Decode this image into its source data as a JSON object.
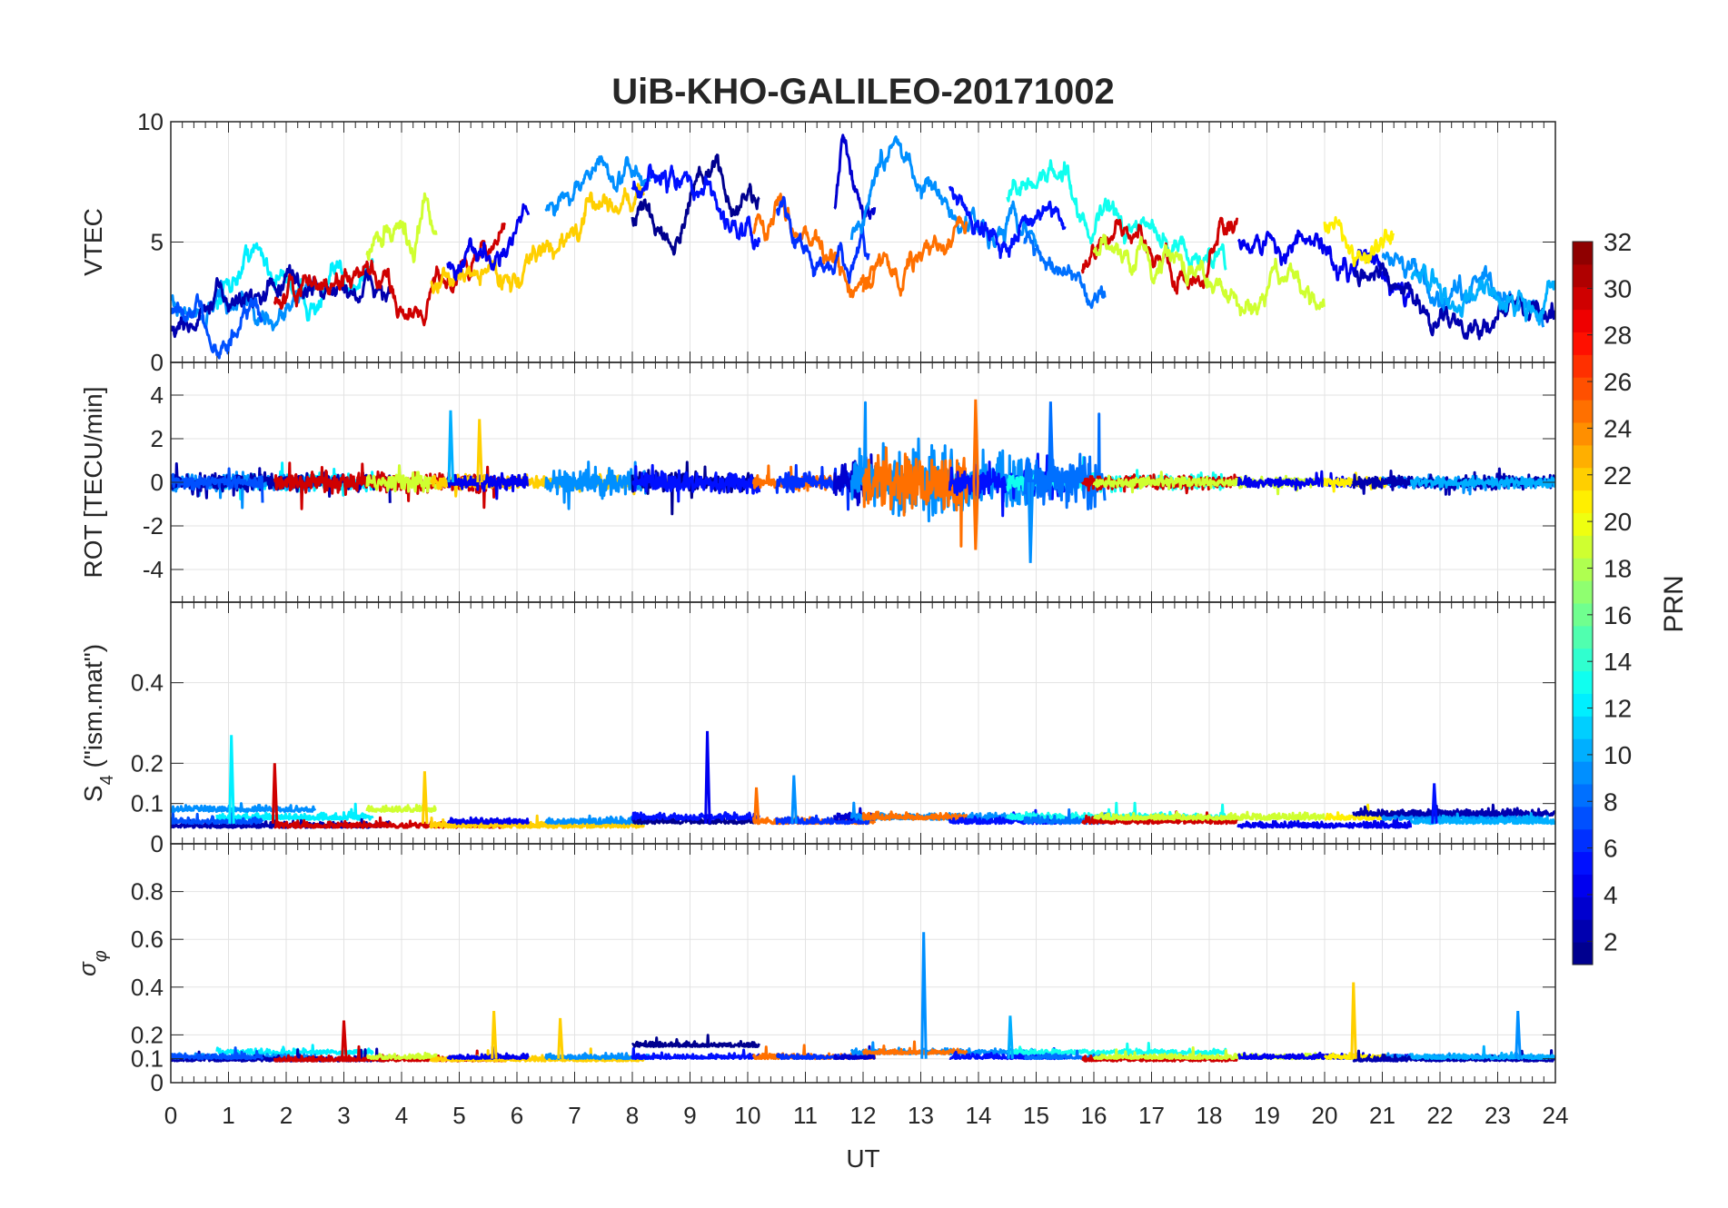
{
  "chart_data": {
    "type": "line",
    "title": "UiB-KHO-GALILEO-20171002",
    "xlabel": "UT",
    "xlim": [
      0,
      24
    ],
    "xticks": [
      "0",
      "1",
      "2",
      "3",
      "4",
      "5",
      "6",
      "7",
      "8",
      "9",
      "10",
      "11",
      "12",
      "13",
      "14",
      "15",
      "16",
      "17",
      "18",
      "19",
      "20",
      "21",
      "22",
      "23",
      "24"
    ],
    "colorbar": {
      "label": "PRN",
      "range": [
        1,
        32
      ],
      "ticks": [
        "2",
        "4",
        "6",
        "8",
        "10",
        "12",
        "14",
        "16",
        "18",
        "20",
        "22",
        "24",
        "26",
        "28",
        "30",
        "32"
      ],
      "colormap": "jet"
    },
    "panels": [
      {
        "id": "vtec",
        "ylabel": "VTEC",
        "ylim": [
          0,
          10
        ],
        "yticks": [
          "0",
          "5",
          "10"
        ],
        "ytick_values": [
          0,
          5,
          10
        ]
      },
      {
        "id": "rot",
        "ylabel": "ROT [TECU/min]",
        "ylim": [
          -5.5,
          5.5
        ],
        "yticks": [
          "-4",
          "-2",
          "0",
          "2",
          "4"
        ],
        "ytick_values": [
          -4,
          -2,
          0,
          2,
          4
        ]
      },
      {
        "id": "s4",
        "ylabel": "S",
        "ylabel_sub": "4",
        "ylabel_rest": " (\"ism.mat\")",
        "ylim": [
          0,
          0.6
        ],
        "yticks": [
          "0",
          "0.1",
          "0.2",
          "0.4"
        ],
        "ytick_values": [
          0,
          0.1,
          0.2,
          0.4
        ]
      },
      {
        "id": "sigma",
        "ylabel": "σ",
        "ylabel_sub": "φ",
        "ylim": [
          0,
          1
        ],
        "yticks": [
          "0",
          "0.1",
          "0.2",
          "0.4",
          "0.6",
          "0.8"
        ],
        "ytick_values": [
          0,
          0.1,
          0.2,
          0.4,
          0.6,
          0.8
        ]
      }
    ],
    "series": [
      {
        "prn": 12,
        "t": [
          0.8,
          1.4,
          2.0,
          2.5,
          3.0,
          3.5
        ],
        "vtec": [
          2.5,
          4.8,
          3.5,
          2.5,
          3.2,
          4.0
        ],
        "rot_amp": 0.5,
        "s4": 0.06,
        "sigma": 0.12
      },
      {
        "prn": 9,
        "t": [
          0,
          0.5,
          1.0,
          1.5,
          2.0,
          2.5
        ],
        "vtec": [
          2.6,
          2.3,
          2.0,
          1.5,
          2.5,
          3.0
        ],
        "rot_amp": 0.5,
        "s4": 0.08,
        "sigma": 0.1
      },
      {
        "prn": 2,
        "t": [
          0,
          0.6,
          1.2,
          1.8,
          2.4,
          3.0,
          3.8
        ],
        "vtec": [
          1.5,
          2.0,
          2.5,
          3.5,
          3.0,
          3.0,
          3.0
        ],
        "rot_amp": 0.5,
        "s4": 0.04,
        "sigma": 0.09
      },
      {
        "prn": 7,
        "t": [
          0,
          0.6,
          1.0,
          1.6
        ],
        "vtec": [
          2.0,
          1.2,
          0.8,
          1.8
        ],
        "rot_amp": 0.4,
        "s4": 0.05,
        "sigma": 0.1
      },
      {
        "prn": 30,
        "t": [
          1.8,
          2.5,
          3.2,
          3.8,
          4.2,
          4.6,
          5.0,
          5.4,
          5.8
        ],
        "vtec": [
          2.5,
          3.0,
          3.2,
          2.8,
          2.2,
          3.5,
          4.0,
          4.2,
          5.5
        ],
        "rot_amp": 0.6,
        "s4": 0.04,
        "sigma": 0.09
      },
      {
        "prn": 19,
        "t": [
          3.4,
          3.7,
          4.0,
          4.2,
          4.4,
          4.6
        ],
        "vtec": [
          4.5,
          5.5,
          6.0,
          4.5,
          6.5,
          5.5
        ],
        "rot_amp": 0.6,
        "s4": 0.08,
        "sigma": 0.1
      },
      {
        "prn": 22,
        "t": [
          4.5,
          5.0,
          5.5,
          6.0,
          6.5,
          7.0,
          7.5,
          7.9,
          8.2
        ],
        "vtec": [
          3.5,
          3.2,
          4.0,
          3.5,
          4.5,
          5.5,
          6.5,
          7.0,
          7.2
        ],
        "rot_amp": 0.4,
        "s4": 0.04,
        "sigma": 0.09
      },
      {
        "prn": 4,
        "t": [
          4.8,
          5.2,
          5.7,
          6.2
        ],
        "vtec": [
          4.0,
          4.5,
          5.0,
          6.0
        ],
        "rot_amp": 0.5,
        "s4": 0.05,
        "sigma": 0.1
      },
      {
        "prn": 9,
        "t": [
          6.5,
          7.0,
          7.5,
          7.8,
          8.3
        ],
        "vtec": [
          6.5,
          7.5,
          8.0,
          7.5,
          8.0
        ],
        "rot_amp": 0.8,
        "s4": 0.05,
        "sigma": 0.1
      },
      {
        "prn": 1,
        "t": [
          8.0,
          8.5,
          9.0,
          9.4,
          9.8,
          10.2
        ],
        "vtec": [
          6.0,
          5.5,
          6.5,
          8.5,
          6.5,
          6.7
        ],
        "rot_amp": 0.6,
        "s4": 0.05,
        "sigma": 0.15
      },
      {
        "prn": 5,
        "t": [
          8.0,
          8.6,
          9.2,
          9.6,
          10.0,
          10.2
        ],
        "vtec": [
          7.0,
          7.2,
          7.0,
          6.0,
          5.5,
          5.2
        ],
        "rot_amp": 0.6,
        "s4": 0.06,
        "sigma": 0.1
      },
      {
        "prn": 25,
        "t": [
          10.1,
          10.5,
          11.0,
          11.4,
          11.8,
          12.2
        ],
        "vtec": [
          5.5,
          6.5,
          6.0,
          4.5,
          2.5,
          3.5
        ],
        "rot_amp": 0.4,
        "s4": 0.05,
        "sigma": 0.1
      },
      {
        "prn": 6,
        "t": [
          10.5,
          11.0,
          11.3,
          11.6,
          12.1
        ],
        "vtec": [
          6.5,
          5.0,
          3.5,
          4.0,
          3.8
        ],
        "rot_amp": 0.6,
        "s4": 0.05,
        "sigma": 0.1
      },
      {
        "prn": 3,
        "t": [
          11.5,
          11.7,
          12.0,
          12.2
        ],
        "vtec": [
          6.5,
          8.5,
          6.0,
          6.5
        ],
        "rot_amp": 1.5,
        "s4": 0.06,
        "sigma": 0.1
      },
      {
        "prn": 9,
        "t": [
          11.8,
          12.5,
          13.0,
          13.5,
          14.0,
          15.0
        ],
        "vtec": [
          5.0,
          9.0,
          8.0,
          6.0,
          5.5,
          6.0
        ],
        "rot_amp": 1.8,
        "s4": 0.06,
        "sigma": 0.12
      },
      {
        "prn": 25,
        "t": [
          12.0,
          12.5,
          13.0,
          13.4,
          13.8
        ],
        "vtec": [
          3.0,
          4.0,
          5.0,
          4.5,
          6.0
        ],
        "rot_amp": 1.6,
        "s4": 0.06,
        "sigma": 0.12
      },
      {
        "prn": 5,
        "t": [
          13.5,
          14.0,
          14.5,
          15.0,
          15.5
        ],
        "vtec": [
          7.0,
          6.0,
          5.5,
          6.0,
          5.0
        ],
        "rot_amp": 0.9,
        "s4": 0.05,
        "sigma": 0.1
      },
      {
        "prn": 13,
        "t": [
          14.5,
          15.0,
          15.5,
          15.9,
          16.5,
          17.2,
          18.0,
          18.3
        ],
        "vtec": [
          7.0,
          7.5,
          8.0,
          6.0,
          5.5,
          5.0,
          4.5,
          4.5
        ],
        "rot_amp": 0.5,
        "s4": 0.06,
        "sigma": 0.12
      },
      {
        "prn": 8,
        "t": [
          14.8,
          15.3,
          15.8,
          16.2
        ],
        "vtec": [
          5.0,
          4.0,
          3.5,
          3.0
        ],
        "rot_amp": 1.6,
        "s4": 0.05,
        "sigma": 0.1
      },
      {
        "prn": 30,
        "t": [
          15.8,
          16.3,
          17.0,
          17.5,
          18.0,
          18.5
        ],
        "vtec": [
          4.0,
          5.5,
          4.5,
          3.5,
          4.0,
          5.2
        ],
        "rot_amp": 0.4,
        "s4": 0.05,
        "sigma": 0.09
      },
      {
        "prn": 19,
        "t": [
          16.0,
          17.0,
          18.0,
          18.5,
          19.0,
          19.5,
          20.0
        ],
        "vtec": [
          4.5,
          4.0,
          3.5,
          2.5,
          3.0,
          4.0,
          2.5
        ],
        "rot_amp": 0.3,
        "s4": 0.06,
        "sigma": 0.1
      },
      {
        "prn": 4,
        "t": [
          18.5,
          19.0,
          19.7,
          20.3,
          21.0,
          21.5
        ],
        "vtec": [
          5.0,
          5.2,
          4.5,
          4.0,
          4.2,
          3.5
        ],
        "rot_amp": 0.3,
        "s4": 0.04,
        "sigma": 0.1
      },
      {
        "prn": 21,
        "t": [
          20.0,
          20.4,
          20.8,
          21.2
        ],
        "vtec": [
          5.8,
          5.3,
          4.3,
          5.0
        ],
        "rot_amp": 0.3,
        "s4": 0.06,
        "sigma": 0.1
      },
      {
        "prn": 9,
        "t": [
          21.0,
          21.6,
          22.2,
          23.0,
          23.8
        ],
        "vtec": [
          4.5,
          3.5,
          3.0,
          3.2,
          1.5
        ],
        "rot_amp": 0.3,
        "s4": 0.06,
        "sigma": 0.1
      },
      {
        "prn": 2,
        "t": [
          20.5,
          21.3,
          22.0,
          22.8,
          23.5,
          24.0
        ],
        "vtec": [
          3.5,
          2.5,
          2.0,
          1.8,
          2.0,
          2.2
        ],
        "rot_amp": 0.4,
        "s4": 0.07,
        "sigma": 0.09
      },
      {
        "prn": 10,
        "t": [
          21.5,
          22.3,
          23.0,
          23.6,
          24.0
        ],
        "vtec": [
          3.5,
          3.0,
          2.8,
          2.0,
          2.8
        ],
        "rot_amp": 0.3,
        "s4": 0.05,
        "sigma": 0.1
      }
    ],
    "spikes": {
      "rot": [
        {
          "t": 4.85,
          "v": 3.3,
          "prn": 10
        },
        {
          "t": 5.35,
          "v": 2.9,
          "prn": 22
        },
        {
          "t": 13.95,
          "v": 3.8,
          "prn": 25
        },
        {
          "t": 13.95,
          "v": -3.1,
          "prn": 25
        },
        {
          "t": 14.9,
          "v": -3.7,
          "prn": 9
        },
        {
          "t": 15.25,
          "v": 3.7,
          "prn": 8
        }
      ],
      "s4": [
        {
          "t": 1.05,
          "v": 0.27,
          "prn": 12
        },
        {
          "t": 1.8,
          "v": 0.2,
          "prn": 30
        },
        {
          "t": 4.4,
          "v": 0.18,
          "prn": 22
        },
        {
          "t": 9.3,
          "v": 0.28,
          "prn": 4
        },
        {
          "t": 10.15,
          "v": 0.14,
          "prn": 25
        },
        {
          "t": 10.8,
          "v": 0.17,
          "prn": 9
        },
        {
          "t": 21.9,
          "v": 0.15,
          "prn": 5
        }
      ],
      "sigma": [
        {
          "t": 3.0,
          "v": 0.26,
          "prn": 30
        },
        {
          "t": 5.6,
          "v": 0.3,
          "prn": 22
        },
        {
          "t": 6.75,
          "v": 0.27,
          "prn": 22
        },
        {
          "t": 13.05,
          "v": 0.63,
          "prn": 9
        },
        {
          "t": 14.55,
          "v": 0.28,
          "prn": 10
        },
        {
          "t": 20.5,
          "v": 0.42,
          "prn": 22
        },
        {
          "t": 23.35,
          "v": 0.3,
          "prn": 9
        }
      ]
    }
  }
}
